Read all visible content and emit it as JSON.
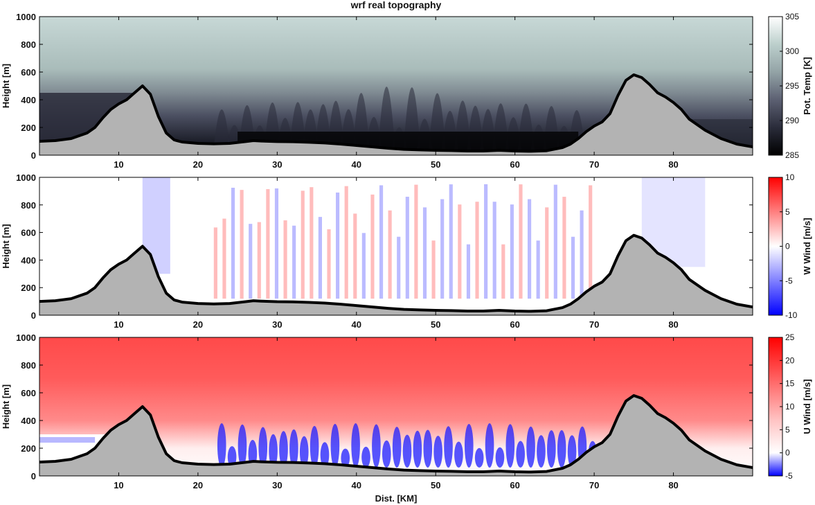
{
  "figure": {
    "title": "wrf real topography",
    "xlabel": "Dist. [KM]"
  },
  "chart_data": [
    {
      "type": "heatmap",
      "ylabel": "Height [m]",
      "colorbar_label": "Pot. Temp [K]",
      "colorbar_ticks": [
        285,
        290,
        295,
        300,
        305
      ],
      "colorbar_range": [
        285,
        305
      ],
      "colormap": [
        "#000000",
        "#2a2c3a",
        "#5c6072",
        "#93a3a6",
        "#bccfcc",
        "#ffffff"
      ],
      "xlim": [
        0,
        90
      ],
      "ylim": [
        0,
        1000
      ],
      "xticks": [
        10,
        20,
        30,
        40,
        50,
        60,
        70,
        80
      ],
      "yticks": [
        0,
        200,
        400,
        600,
        800,
        1000
      ],
      "terrain_fill": "#b3b3b3"
    },
    {
      "type": "heatmap",
      "ylabel": "Height [m]",
      "colorbar_label": "W Wind [m/s]",
      "colorbar_ticks": [
        -10,
        -5,
        0,
        5,
        10
      ],
      "colorbar_range": [
        -10,
        10
      ],
      "colormap": [
        "#0000ff",
        "#ffffff",
        "#ff0000"
      ],
      "xlim": [
        0,
        90
      ],
      "ylim": [
        0,
        1000
      ],
      "xticks": [
        10,
        20,
        30,
        40,
        50,
        60,
        70,
        80
      ],
      "yticks": [
        0,
        200,
        400,
        600,
        800,
        1000
      ],
      "terrain_fill": "#b3b3b3"
    },
    {
      "type": "heatmap",
      "ylabel": "Height [m]",
      "colorbar_label": "U Wind [m/s]",
      "colorbar_ticks": [
        -5,
        0,
        5,
        10,
        15,
        20,
        25
      ],
      "colorbar_range": [
        -5,
        25
      ],
      "colormap": [
        "#0000ff",
        "#ffffff",
        "#ff0000"
      ],
      "xlim": [
        0,
        90
      ],
      "ylim": [
        0,
        1000
      ],
      "xticks": [
        10,
        20,
        30,
        40,
        50,
        60,
        70,
        80
      ],
      "yticks": [
        0,
        200,
        400,
        600,
        800,
        1000
      ],
      "terrain_fill": "#b3b3b3"
    }
  ],
  "terrain": {
    "x": [
      0,
      2,
      4,
      6,
      7,
      8,
      9,
      10,
      11,
      12,
      13,
      14,
      15,
      16,
      17,
      18,
      20,
      22,
      24,
      26,
      27,
      28,
      30,
      32,
      34,
      36,
      38,
      40,
      42,
      44,
      46,
      48,
      50,
      52,
      54,
      56,
      58,
      60,
      62,
      64,
      66,
      67,
      68,
      69,
      70,
      71,
      72,
      73,
      74,
      75,
      76,
      77,
      78,
      79,
      80,
      81,
      82,
      84,
      86,
      88,
      90
    ],
    "y": [
      100,
      105,
      120,
      160,
      200,
      270,
      330,
      370,
      400,
      450,
      500,
      440,
      280,
      160,
      110,
      95,
      85,
      82,
      85,
      98,
      105,
      102,
      98,
      97,
      93,
      88,
      80,
      70,
      60,
      50,
      42,
      38,
      35,
      33,
      30,
      30,
      35,
      30,
      28,
      32,
      55,
      80,
      120,
      170,
      210,
      240,
      300,
      430,
      540,
      580,
      560,
      510,
      450,
      420,
      380,
      330,
      260,
      180,
      120,
      80,
      60
    ]
  }
}
